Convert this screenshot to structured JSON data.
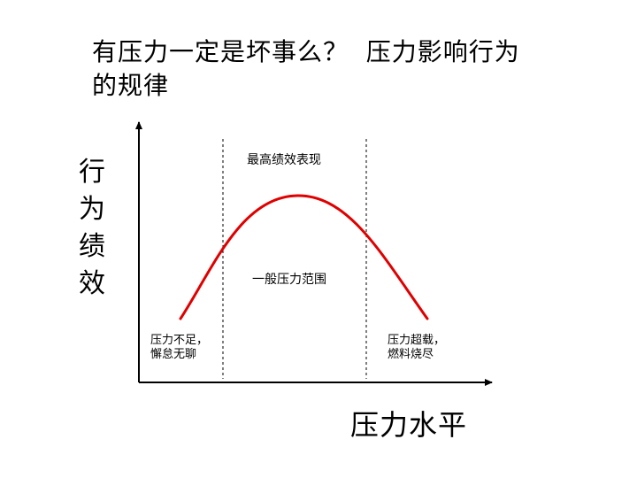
{
  "title": {
    "line1": "有压力一定是坏事么？  压力影响行为",
    "line2": "的规律"
  },
  "axes": {
    "y_label_chars": [
      "行",
      "为",
      "绩",
      "效"
    ],
    "x_label": "压力水平"
  },
  "zones": {
    "peak_label": "最高绩效表现",
    "middle_label": "一般压力范围"
  },
  "notes": {
    "left_line1": "压力不足，",
    "left_line2": "懈怠无聊",
    "right_line1": "压力超载，",
    "right_line2": "燃料烧尽"
  },
  "colors": {
    "curve": "#e00000",
    "axis": "#000000",
    "divider": "#000000"
  }
}
